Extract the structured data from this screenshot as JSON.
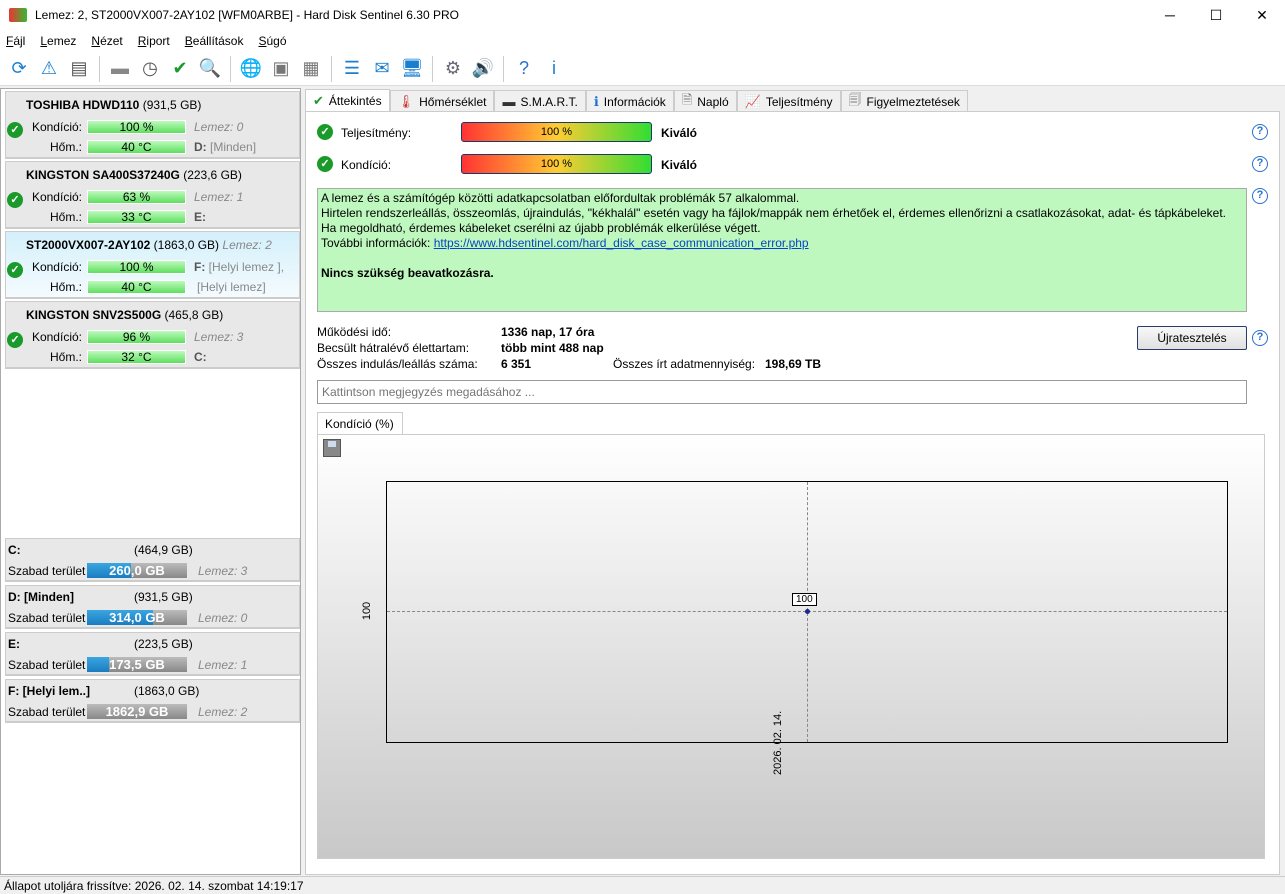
{
  "window": {
    "title": "Lemez: 2, ST2000VX007-2AY102 [WFM0ARBE]  -  Hard Disk Sentinel 6.30 PRO",
    "minimize": "─",
    "maximize": "☐",
    "close": "✕"
  },
  "menu": [
    "Fájl",
    "Lemez",
    "Nézet",
    "Riport",
    "Beállítások",
    "Súgó"
  ],
  "toolbar": [
    {
      "icon": "refresh-icon",
      "glyph": "⟳"
    },
    {
      "icon": "refresh-warning-icon",
      "glyph": "⚠"
    },
    {
      "icon": "disk-list-icon",
      "glyph": "▤"
    },
    {
      "icon": "disk-sleep-icon",
      "glyph": "▬"
    },
    {
      "icon": "disk-schedule-icon",
      "glyph": "◷"
    },
    {
      "icon": "disk-check-icon",
      "glyph": "✔"
    },
    {
      "icon": "disk-search-icon",
      "glyph": "🔍"
    },
    {
      "icon": "network-disk-icon",
      "glyph": "🌐"
    },
    {
      "icon": "disk-enclosure-icon",
      "glyph": "▣"
    },
    {
      "icon": "disk-external-icon",
      "glyph": "▦"
    },
    {
      "icon": "report-icon",
      "glyph": "☰"
    },
    {
      "icon": "mail-icon",
      "glyph": "✉"
    },
    {
      "icon": "network-icon",
      "glyph": "🖥"
    },
    {
      "icon": "settings-icon",
      "glyph": "⚙"
    },
    {
      "icon": "sound-icon",
      "glyph": "🔊"
    },
    {
      "icon": "help-icon",
      "glyph": "?"
    },
    {
      "icon": "info-icon",
      "glyph": "i"
    }
  ],
  "disks": [
    {
      "name": "TOSHIBA HDWD110",
      "size": "(931,5 GB)",
      "cond_label": "Kondíció:",
      "cond": "100 %",
      "temp_label": "Hőm.:",
      "temp": "40 °C",
      "lemez": "Lemez: 0",
      "drive": "D:",
      "drive_name": "[Minden]",
      "extra": ""
    },
    {
      "name": "KINGSTON SA400S37240G",
      "size": "(223,6 GB)",
      "cond_label": "Kondíció:",
      "cond": "63 %",
      "temp_label": "Hőm.:",
      "temp": "33 °C",
      "lemez": "Lemez: 1",
      "drive": "E:",
      "drive_name": "",
      "extra": ""
    },
    {
      "name": "ST2000VX007-2AY102",
      "size": "(1863,0 GB)",
      "cond_label": "Kondíció:",
      "cond": "100 %",
      "temp_label": "Hőm.:",
      "temp": "40 °C",
      "lemez": "Lemez: 2",
      "drive": "F:",
      "drive_name": "[Helyi lemez ],",
      "extra": "[Helyi lemez]"
    },
    {
      "name": "KINGSTON SNV2S500G",
      "size": "(465,8 GB)",
      "cond_label": "Kondíció:",
      "cond": "96 %",
      "temp_label": "Hőm.:",
      "temp": "32 °C",
      "lemez": "Lemez: 3",
      "drive": "C:",
      "drive_name": "",
      "extra": ""
    }
  ],
  "volumes": [
    {
      "name": "C:",
      "size": "(464,9 GB)",
      "free_label": "Szabad terület",
      "free": "260,0 GB",
      "used_pct": 44,
      "lemez": "Lemez: 3"
    },
    {
      "name": "D: [Minden]",
      "size": "(931,5 GB)",
      "free_label": "Szabad terület",
      "free": "314,0 GB",
      "used_pct": 66,
      "lemez": "Lemez: 0"
    },
    {
      "name": "E:",
      "size": "(223,5 GB)",
      "free_label": "Szabad terület",
      "free": "173,5 GB",
      "used_pct": 22,
      "lemez": "Lemez: 1"
    },
    {
      "name": "F: [Helyi lem..]",
      "size": "(1863,0 GB)",
      "free_label": "Szabad terület",
      "free": "1862,9 GB",
      "used_pct": 0,
      "lemez": "Lemez: 2"
    }
  ],
  "tabs": [
    {
      "label": "Áttekintés",
      "icon": "check-icon",
      "glyph": "✔"
    },
    {
      "label": "Hőmérséklet",
      "icon": "thermometer-icon",
      "glyph": "🌡"
    },
    {
      "label": "S.M.A.R.T.",
      "icon": "disk-icon",
      "glyph": "▬"
    },
    {
      "label": "Információk",
      "icon": "info-icon",
      "glyph": "ℹ"
    },
    {
      "label": "Napló",
      "icon": "log-icon",
      "glyph": "🗎"
    },
    {
      "label": "Teljesítmény",
      "icon": "performance-icon",
      "glyph": "📈"
    },
    {
      "label": "Figyelmeztetések",
      "icon": "alerts-icon",
      "glyph": "🗐"
    }
  ],
  "overview": {
    "perf_label": "Teljesítmény:",
    "perf_value": "100 %",
    "perf_pct": 100,
    "perf_rating": "Kiváló",
    "cond_label": "Kondíció:",
    "cond_value": "100 %",
    "cond_pct": 100,
    "cond_rating": "Kiváló",
    "msg_line1": "A lemez és a számítógép közötti adatkapcsolatban előfordultak problémák 57 alkalommal.",
    "msg_line2": "Hirtelen rendszerleállás, összeomlás, újraindulás, \"kékhalál\" esetén vagy ha fájlok/mappák nem érhetőek el, érdemes ellenőrizni a csatlakozásokat, adat- és tápkábeleket. Ha megoldható, érdemes kábeleket cserélni az újabb problémák elkerülése végett.",
    "more_label": "További információk: ",
    "more_link": "https://www.hdsentinel.com/hard_disk_case_communication_error.php",
    "msg_bold": "Nincs szükség beavatkozásra.",
    "uptime_label": "Működési idő:",
    "uptime": "1336 nap, 17 óra",
    "life_label": "Becsült hátralévő élettartam:",
    "life": "több mint 488 nap",
    "starts_label": "Összes indulás/leállás száma:",
    "starts": "6 351",
    "written_label": "Összes írt adatmennyiség:",
    "written": "198,69 TB",
    "retest": "Újratesztelés",
    "note_placeholder": "Kattintson megjegyzés megadásához ...",
    "help": "?"
  },
  "chart": {
    "tab": "Kondíció  (%)",
    "y_tick": "100",
    "x_tick": "2026. 02. 14.",
    "point_label": "100"
  },
  "chart_data": {
    "type": "line",
    "title": "Kondíció  (%)",
    "x": [
      "2026. 02. 14."
    ],
    "series": [
      {
        "values": [
          100
        ]
      }
    ],
    "y_ticks": [
      100
    ],
    "grid": false
  },
  "status": "Állapot utoljára frissítve: 2026. 02. 14. szombat 14:19:17"
}
